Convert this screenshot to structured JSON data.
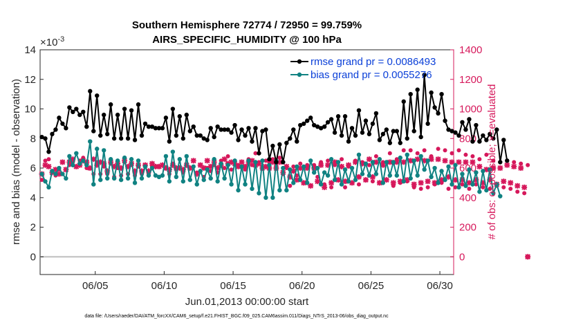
{
  "chart_data": {
    "type": "line",
    "title": "Southern Hemisphere 72774 / 72950 = 99.759%",
    "subtitle": "AIRS_SPECIFIC_HUMIDITY @ 100 hPa",
    "xlabel": "Jun.01,2013 00:00:00 start",
    "ylabel": "rmse and bias (model - observation)",
    "y2label": "# of obs: o=possible; ×=evaluated",
    "y_exponent_label": "×10",
    "y_exponent_power": "-3",
    "xlim": [
      1.0,
      31.0
    ],
    "ylim": [
      -1.2,
      14
    ],
    "y2lim": [
      -120,
      1400
    ],
    "x_ticks": [
      5,
      10,
      15,
      20,
      25,
      30
    ],
    "x_tick_labels": [
      "06/05",
      "06/10",
      "06/15",
      "06/20",
      "06/25",
      "06/30"
    ],
    "y_ticks": [
      0,
      2,
      4,
      6,
      8,
      10,
      12,
      14
    ],
    "y2_ticks": [
      0,
      200,
      400,
      600,
      800,
      1000,
      1200,
      1400
    ],
    "footnote": "data file: /Users/raeder/DAI/ATM_forcXX/CAM6_setup/f.e21.FHIST_BGC.f09_025.CAM6assim.011/Diags_NTrS_2013-06/obs_diag_output.nc",
    "legend": [
      {
        "label": "rmse grand pr = 0.0086493",
        "color": "#000000"
      },
      {
        "label": "bias grand pr = 0.0055276",
        "color": "#108282"
      }
    ],
    "series": [
      {
        "name": "rmse",
        "color": "#000000",
        "axis": "left",
        "x_start": 1.125,
        "x_step": 0.25,
        "values": [
          8.1,
          8.0,
          7.1,
          8.3,
          8.6,
          9.4,
          9.0,
          8.7,
          10.1,
          9.8,
          10.0,
          9.6,
          9.8,
          8.8,
          11.2,
          8.5,
          10.9,
          8.2,
          9.6,
          8.3,
          10.3,
          8.0,
          9.6,
          8.0,
          10.0,
          8.0,
          9.9,
          7.9,
          10.3,
          8.2,
          9.0,
          8.8,
          8.8,
          8.7,
          8.7,
          8.7,
          9.4,
          7.8,
          10.0,
          8.2,
          9.5,
          8.0,
          9.6,
          8.5,
          8.8,
          8.2,
          8.2,
          8.0,
          7.9,
          8.7,
          8.1,
          8.8,
          8.6,
          8.6,
          8.6,
          8.4,
          8.9,
          7.9,
          8.6,
          8.2,
          8.7,
          7.8,
          8.7,
          7.0,
          8.5,
          8.6,
          6.6,
          7.5,
          6.4,
          7.6,
          6.4,
          7.7,
          8.0,
          8.6,
          7.8,
          8.9,
          9.0,
          9.2,
          9.4,
          8.9,
          8.8,
          8.7,
          8.8,
          9.1,
          9.3,
          8.4,
          9.5,
          8.2,
          9.5,
          7.8,
          8.7,
          8.2,
          9.9,
          8.4,
          9.2,
          8.3,
          9.0,
          9.7,
          7.9,
          8.3,
          8.6,
          7.7,
          8.5,
          8.5,
          7.7,
          10.5,
          8.0,
          11.0,
          8.5,
          11.3,
          8.1,
          12.3,
          9.0,
          11.1,
          10.1,
          9.7,
          11.0,
          9.2,
          8.6,
          8.5,
          8.4,
          8.2,
          9.1,
          8.6,
          9.3,
          7.8,
          8.9,
          7.8,
          8.2,
          7.9,
          8.3,
          8.0,
          8.6,
          6.4,
          7.9,
          6.5
        ]
      },
      {
        "name": "bias",
        "color": "#108282",
        "axis": "left",
        "x_start": 1.125,
        "x_step": 0.25,
        "values": [
          5.6,
          5.1,
          4.7,
          5.8,
          5.6,
          6.0,
          5.6,
          5.3,
          6.8,
          6.2,
          7.0,
          6.3,
          6.5,
          6.2,
          7.8,
          4.9,
          7.3,
          5.2,
          7.2,
          5.3,
          6.6,
          5.3,
          6.5,
          5.2,
          6.7,
          5.3,
          6.6,
          5.0,
          6.5,
          5.3,
          6.1,
          5.5,
          6.0,
          5.5,
          5.4,
          5.5,
          6.8,
          5.1,
          7.1,
          5.4,
          6.6,
          5.1,
          6.8,
          5.2,
          6.1,
          4.9,
          5.8,
          5.2,
          5.9,
          5.3,
          6.6,
          5.1,
          6.3,
          5.3,
          6.2,
          4.9,
          6.5,
          4.5,
          6.1,
          4.9,
          6.5,
          4.6,
          6.4,
          4.3,
          6.5,
          4.0,
          6.2,
          4.0,
          6.5,
          4.5,
          6.0,
          4.5,
          5.9,
          5.0,
          6.1,
          5.2,
          6.1,
          5.0,
          6.5,
          5.7,
          6.0,
          4.9,
          5.7,
          5.5,
          6.6,
          5.2,
          6.4,
          4.9,
          5.9,
          5.1,
          6.0,
          5.2,
          6.9,
          5.6,
          6.3,
          5.5,
          6.4,
          5.6,
          6.6,
          5.0,
          6.4,
          5.5,
          6.4,
          5.5,
          6.7,
          5.1,
          6.9,
          5.3,
          6.5,
          5.5,
          6.8,
          5.9,
          6.5,
          5.4,
          6.0,
          5.0,
          5.8,
          5.2,
          6.1,
          4.9,
          6.2,
          4.7,
          5.6,
          4.8,
          5.9,
          4.9,
          5.7,
          4.4,
          5.8,
          4.5,
          5.9,
          4.3,
          4.9,
          4.1
        ]
      },
      {
        "name": "# of obs possible",
        "color": "#d6185b",
        "axis": "right",
        "x_start": 1.125,
        "x_step": 0.25,
        "values": [
          520,
          650,
          660,
          580,
          550,
          590,
          640,
          530,
          620,
          640,
          610,
          650,
          670,
          600,
          600,
          560,
          640,
          560,
          610,
          560,
          630,
          540,
          600,
          550,
          640,
          560,
          620,
          550,
          610,
          560,
          620,
          560,
          610,
          550,
          610,
          550,
          600,
          560,
          630,
          590,
          660,
          570,
          620,
          600,
          650,
          570,
          620,
          540,
          600,
          580,
          620,
          570,
          650,
          600,
          680,
          590,
          650,
          620,
          640,
          590,
          660,
          620,
          700,
          640,
          600,
          650,
          640,
          660,
          620,
          670,
          560,
          600,
          480,
          610,
          550,
          630,
          500,
          620,
          480,
          620,
          540,
          640,
          490,
          650,
          470,
          620,
          520,
          660,
          470,
          610,
          500,
          650,
          490,
          640,
          520,
          620,
          510,
          680,
          500,
          640,
          520,
          700,
          480,
          660,
          500,
          720,
          510,
          720,
          470,
          700,
          460,
          720,
          470,
          680,
          490,
          730,
          500,
          720,
          460,
          700,
          470,
          720,
          490,
          690,
          460,
          680,
          490,
          660,
          470,
          690,
          460,
          650,
          480,
          640,
          470,
          650,
          460,
          640,
          440,
          630,
          430,
          620
        ]
      },
      {
        "name": "# of obs evaluated",
        "color": "#d6185b",
        "axis": "right",
        "x_start": 1.125,
        "x_step": 0.25,
        "values": [
          560,
          620,
          610,
          570,
          590,
          560,
          640,
          590,
          640,
          660,
          610,
          620,
          650,
          640,
          600,
          660,
          620,
          640,
          630,
          580,
          640,
          610,
          630,
          600,
          650,
          610,
          630,
          580,
          620,
          580,
          620,
          580,
          630,
          610,
          610,
          620,
          600,
          590,
          620,
          600,
          600,
          590,
          620,
          600,
          650,
          560,
          620,
          600,
          650,
          610,
          640,
          600,
          620,
          660,
          630,
          640,
          630,
          610,
          640,
          610,
          640,
          650,
          620,
          630,
          600,
          610,
          600,
          640,
          600,
          640,
          570,
          610,
          540,
          580,
          520,
          600,
          500,
          600,
          480,
          600,
          510,
          620,
          470,
          620,
          500,
          640,
          520,
          610,
          510,
          620,
          500,
          640,
          540,
          630,
          520,
          660,
          540,
          640,
          500,
          620,
          520,
          640,
          500,
          640,
          510,
          640,
          520,
          650,
          490,
          660,
          500,
          650,
          510,
          660,
          500,
          660,
          520,
          650,
          540,
          640,
          520,
          640,
          520,
          640,
          500,
          640,
          520,
          610,
          500,
          590,
          520,
          600,
          490,
          600,
          510,
          620,
          500,
          610,
          480,
          600,
          470,
          0
        ]
      }
    ]
  }
}
